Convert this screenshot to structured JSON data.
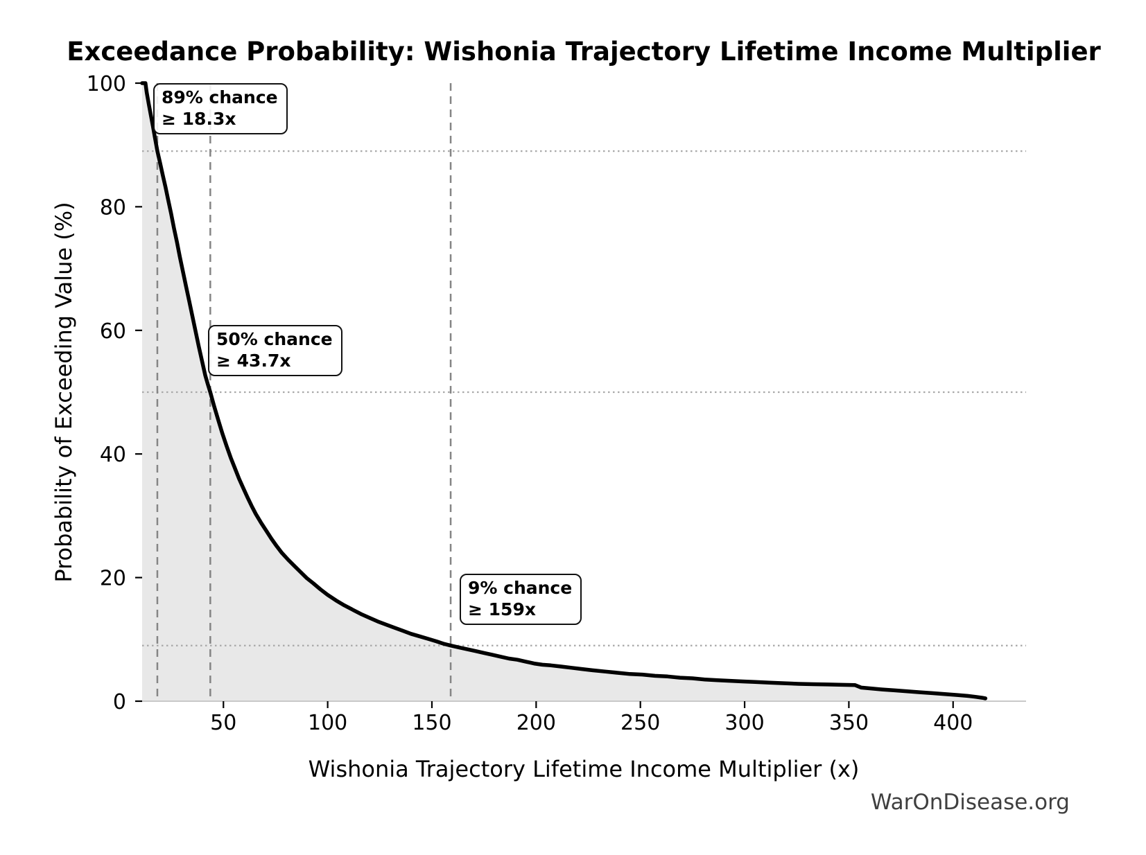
{
  "figure": {
    "title": "Exceedance Probability: Wishonia Trajectory Lifetime Income Multiplier",
    "watermark": "WarOnDisease.org"
  },
  "chart_data": {
    "type": "line",
    "title": "Exceedance Probability: Wishonia Trajectory Lifetime Income Multiplier",
    "xlabel": "Wishonia Trajectory Lifetime Income Multiplier (x)",
    "ylabel": "Probability of Exceeding Value (%)",
    "xlim": [
      11,
      435
    ],
    "ylim": [
      0,
      100
    ],
    "xticks": [
      50,
      100,
      150,
      200,
      250,
      300,
      350,
      400
    ],
    "yticks": [
      0,
      20,
      40,
      60,
      80,
      100
    ],
    "grid": false,
    "legend": "none",
    "reference_lines": {
      "vertical_dashed_x": [
        18.3,
        43.7,
        159
      ],
      "horizontal_dotted_y": [
        89,
        50,
        9
      ]
    },
    "annotations": [
      {
        "line1": "89% chance",
        "line2": "≥ 18.3x",
        "at_x": 18.3,
        "at_probability_pct": 89
      },
      {
        "line1": "50% chance",
        "line2": "≥ 43.7x",
        "at_x": 43.7,
        "at_probability_pct": 50
      },
      {
        "line1": "9% chance",
        "line2": "≥ 159x",
        "at_x": 159,
        "at_probability_pct": 9
      }
    ],
    "series": [
      {
        "name": "exceedance-probability-curve",
        "points": [
          [
            11,
            100
          ],
          [
            12.6,
            100
          ],
          [
            13.2,
            98.5
          ],
          [
            14.2,
            96.6
          ],
          [
            15.2,
            94.8
          ],
          [
            16.2,
            93.0
          ],
          [
            17.2,
            91.1
          ],
          [
            18.3,
            89.0
          ],
          [
            19.6,
            87.1
          ],
          [
            20.9,
            85.1
          ],
          [
            22.2,
            83.2
          ],
          [
            23.5,
            81.1
          ],
          [
            24.9,
            78.9
          ],
          [
            26.3,
            76.5
          ],
          [
            27.7,
            74.3
          ],
          [
            29.1,
            71.9
          ],
          [
            30.6,
            69.5
          ],
          [
            32.1,
            67.1
          ],
          [
            33.6,
            64.7
          ],
          [
            35.1,
            62.3
          ],
          [
            36.6,
            59.9
          ],
          [
            38.1,
            57.5
          ],
          [
            39.7,
            55.1
          ],
          [
            41.3,
            52.7
          ],
          [
            42.5,
            51.3
          ],
          [
            43.7,
            50.0
          ],
          [
            45.5,
            47.8
          ],
          [
            47.5,
            45.5
          ],
          [
            49.5,
            43.3
          ],
          [
            51.5,
            41.3
          ],
          [
            53.5,
            39.4
          ],
          [
            55.5,
            37.7
          ],
          [
            57.5,
            36.0
          ],
          [
            59.5,
            34.5
          ],
          [
            61.5,
            33.0
          ],
          [
            63.5,
            31.6
          ],
          [
            65.5,
            30.3
          ],
          [
            68,
            28.9
          ],
          [
            70.5,
            27.6
          ],
          [
            73,
            26.3
          ],
          [
            75.5,
            25.1
          ],
          [
            78,
            24.0
          ],
          [
            81,
            22.9
          ],
          [
            84,
            21.9
          ],
          [
            87,
            20.9
          ],
          [
            90,
            19.9
          ],
          [
            93,
            19.1
          ],
          [
            96.5,
            18.1
          ],
          [
            100,
            17.2
          ],
          [
            104,
            16.3
          ],
          [
            108,
            15.5
          ],
          [
            112,
            14.8
          ],
          [
            116,
            14.1
          ],
          [
            120,
            13.5
          ],
          [
            124,
            12.9
          ],
          [
            128,
            12.4
          ],
          [
            132,
            11.9
          ],
          [
            136,
            11.4
          ],
          [
            140,
            10.9
          ],
          [
            144,
            10.5
          ],
          [
            148,
            10.1
          ],
          [
            152,
            9.7
          ],
          [
            155.5,
            9.3
          ],
          [
            159,
            9.0
          ],
          [
            163,
            8.7
          ],
          [
            167,
            8.4
          ],
          [
            171,
            8.1
          ],
          [
            175,
            7.8
          ],
          [
            179,
            7.5
          ],
          [
            183,
            7.2
          ],
          [
            187,
            6.9
          ],
          [
            191,
            6.7
          ],
          [
            195,
            6.4
          ],
          [
            199,
            6.1
          ],
          [
            203,
            5.9
          ],
          [
            207,
            5.8
          ],
          [
            212,
            5.6
          ],
          [
            217,
            5.4
          ],
          [
            222,
            5.2
          ],
          [
            227,
            5.0
          ],
          [
            233,
            4.8
          ],
          [
            239,
            4.6
          ],
          [
            245,
            4.4
          ],
          [
            251,
            4.3
          ],
          [
            257,
            4.1
          ],
          [
            263,
            4.0
          ],
          [
            269,
            3.8
          ],
          [
            275,
            3.7
          ],
          [
            281,
            3.5
          ],
          [
            287,
            3.4
          ],
          [
            293,
            3.3
          ],
          [
            299,
            3.2
          ],
          [
            305,
            3.1
          ],
          [
            312,
            3.0
          ],
          [
            319,
            2.9
          ],
          [
            326,
            2.8
          ],
          [
            333,
            2.75
          ],
          [
            340,
            2.7
          ],
          [
            347,
            2.65
          ],
          [
            353,
            2.6
          ],
          [
            356,
            2.2
          ],
          [
            361,
            2.05
          ],
          [
            366,
            1.9
          ],
          [
            372,
            1.75
          ],
          [
            378,
            1.6
          ],
          [
            384,
            1.45
          ],
          [
            390,
            1.3
          ],
          [
            396,
            1.15
          ],
          [
            402,
            1.0
          ],
          [
            407,
            0.85
          ],
          [
            411,
            0.7
          ],
          [
            414,
            0.55
          ],
          [
            415.5,
            0.45
          ]
        ]
      }
    ],
    "colors": {
      "curve": "#000000",
      "fill_under_curve": "#e8e8e8",
      "dashed_line": "#858585",
      "dotted_line": "#a8a8a8",
      "axis_spine": "#c9c9c9",
      "tick": "#000000",
      "watermark_text": "#3f3f3f"
    }
  }
}
